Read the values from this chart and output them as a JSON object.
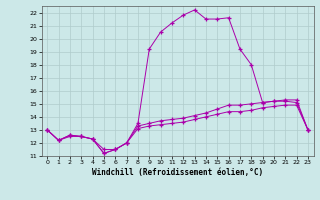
{
  "xlabel": "Windchill (Refroidissement éolien,°C)",
  "bg_color": "#cce8e8",
  "grid_color": "#b0cccc",
  "line_color": "#aa00aa",
  "xlim": [
    -0.5,
    23.5
  ],
  "ylim": [
    11,
    22.5
  ],
  "yticks": [
    11,
    12,
    13,
    14,
    15,
    16,
    17,
    18,
    19,
    20,
    21,
    22
  ],
  "xticks": [
    0,
    1,
    2,
    3,
    4,
    5,
    6,
    7,
    8,
    9,
    10,
    11,
    12,
    13,
    14,
    15,
    16,
    17,
    18,
    19,
    20,
    21,
    22,
    23
  ],
  "curve1_x": [
    0,
    1,
    2,
    3,
    4,
    5,
    6,
    7,
    8,
    9,
    10,
    11,
    12,
    13,
    14,
    15,
    16,
    17,
    18,
    19,
    20,
    21,
    22,
    23
  ],
  "curve1_y": [
    13.0,
    12.2,
    12.6,
    12.5,
    12.3,
    11.2,
    11.5,
    12.0,
    13.5,
    19.2,
    20.5,
    21.2,
    21.8,
    22.2,
    21.5,
    21.5,
    21.6,
    19.2,
    18.0,
    15.1,
    15.2,
    15.2,
    15.1,
    13.0
  ],
  "curve2_x": [
    0,
    1,
    2,
    3,
    4,
    5,
    6,
    7,
    8,
    9,
    10,
    11,
    12,
    13,
    14,
    15,
    16,
    17,
    18,
    19,
    20,
    21,
    22,
    23
  ],
  "curve2_y": [
    13.0,
    12.2,
    12.6,
    12.5,
    12.3,
    11.2,
    11.5,
    12.0,
    13.3,
    13.5,
    13.7,
    13.8,
    13.9,
    14.1,
    14.3,
    14.6,
    14.9,
    14.9,
    15.0,
    15.1,
    15.2,
    15.3,
    15.3,
    13.0
  ],
  "curve3_x": [
    0,
    1,
    2,
    3,
    4,
    5,
    6,
    7,
    8,
    9,
    10,
    11,
    12,
    13,
    14,
    15,
    16,
    17,
    18,
    19,
    20,
    21,
    22,
    23
  ],
  "curve3_y": [
    13.0,
    12.2,
    12.5,
    12.5,
    12.3,
    11.5,
    11.5,
    12.0,
    13.1,
    13.3,
    13.4,
    13.5,
    13.6,
    13.8,
    14.0,
    14.2,
    14.4,
    14.4,
    14.5,
    14.7,
    14.8,
    14.9,
    14.9,
    13.0
  ]
}
